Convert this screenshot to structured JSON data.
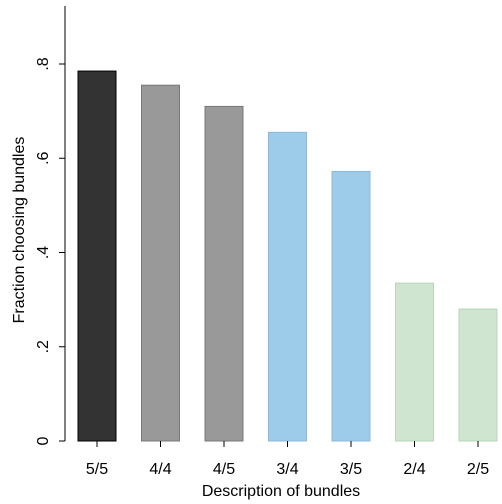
{
  "chart_data": {
    "type": "bar",
    "xlabel": "Description of bundles",
    "ylabel": "Fraction choosing bundles",
    "ylim": [
      0,
      0.86
    ],
    "yticks": [
      {
        "value": 0,
        "label": "0"
      },
      {
        "value": 0.2,
        "label": ".2"
      },
      {
        "value": 0.4,
        "label": ".4"
      },
      {
        "value": 0.6,
        "label": ".6"
      },
      {
        "value": 0.8,
        "label": ".8"
      }
    ],
    "categories": [
      "5/5",
      "4/4",
      "4/5",
      "3/4",
      "3/5",
      "2/4",
      "2/5"
    ],
    "values": [
      0.785,
      0.755,
      0.71,
      0.655,
      0.572,
      0.335,
      0.28
    ],
    "colors": [
      "#333333",
      "#999999",
      "#999999",
      "#9dccea",
      "#9dccea",
      "#cfe5cf",
      "#cfe5cf"
    ],
    "edge_colors": [
      "#000000",
      "#777777",
      "#777777",
      "#8ab8da",
      "#8ab8da",
      "#b9d6b9",
      "#b9d6b9"
    ],
    "grid": false,
    "legend": "none"
  }
}
